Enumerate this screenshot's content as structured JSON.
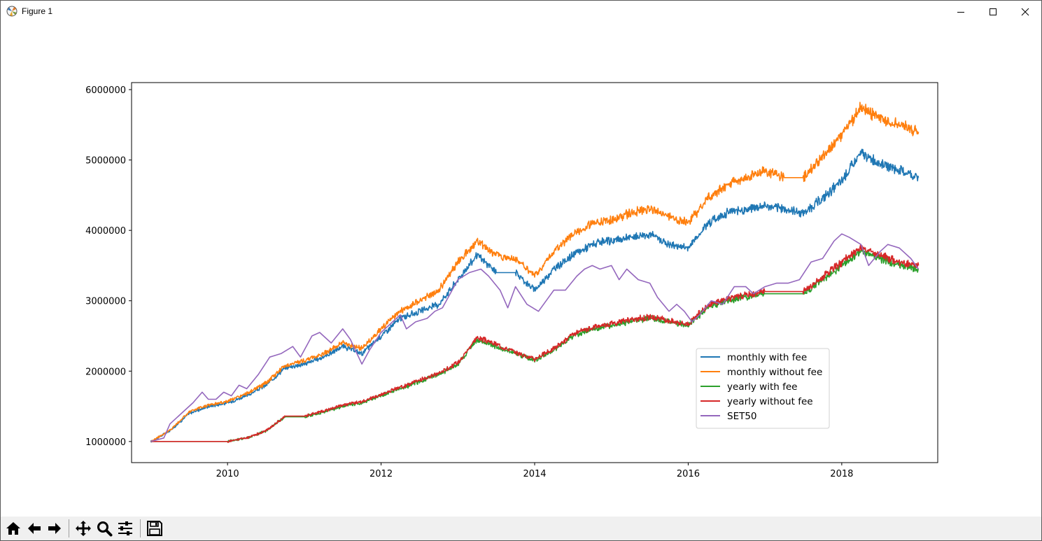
{
  "window": {
    "title": "Figure 1",
    "icons": {
      "app": "matplotlib-icon",
      "minimize": "minimize-icon",
      "maximize": "maximize-icon",
      "close": "close-icon"
    }
  },
  "toolbar": {
    "items": [
      {
        "name": "home-icon"
      },
      {
        "name": "back-arrow-icon"
      },
      {
        "name": "forward-arrow-icon"
      },
      {
        "name": "pan-move-icon"
      },
      {
        "name": "zoom-magnifier-icon"
      },
      {
        "name": "configure-subplots-icon"
      },
      {
        "name": "save-floppy-icon"
      }
    ]
  },
  "chart_data": {
    "type": "line",
    "title": "",
    "xlabel": "",
    "ylabel": "",
    "xlim": [
      2008.75,
      2019.25
    ],
    "ylim": [
      700000,
      6100000
    ],
    "x_ticks": [
      2010,
      2012,
      2014,
      2016,
      2018
    ],
    "x_tick_labels": [
      "2010",
      "2012",
      "2014",
      "2016",
      "2018"
    ],
    "y_ticks": [
      1000000,
      2000000,
      3000000,
      4000000,
      5000000,
      6000000
    ],
    "y_tick_labels": [
      "1000000",
      "2000000",
      "3000000",
      "4000000",
      "5000000",
      "6000000"
    ],
    "grid": false,
    "legend_position": "lower-right",
    "series": [
      {
        "name": "monthly with fee",
        "color": "#1f77b4",
        "noisy": true,
        "x": [
          2009.0,
          2009.25,
          2009.5,
          2009.75,
          2010.0,
          2010.25,
          2010.5,
          2010.75,
          2011.0,
          2011.25,
          2011.5,
          2011.75,
          2012.0,
          2012.25,
          2012.5,
          2012.75,
          2013.0,
          2013.25,
          2013.5,
          2013.75,
          2014.0,
          2014.25,
          2014.5,
          2014.75,
          2015.0,
          2015.25,
          2015.5,
          2015.75,
          2016.0,
          2016.25,
          2016.5,
          2016.75,
          2017.0,
          2017.25,
          2017.5,
          2017.75,
          2018.0,
          2018.25,
          2018.5,
          2018.75,
          2019.0
        ],
        "values": [
          1000000,
          1150000,
          1400000,
          1500000,
          1550000,
          1650000,
          1800000,
          2050000,
          2100000,
          2200000,
          2350000,
          2250000,
          2500000,
          2750000,
          2850000,
          2950000,
          3300000,
          3650000,
          3400000,
          3400000,
          3150000,
          3450000,
          3650000,
          3800000,
          3850000,
          3900000,
          3950000,
          3800000,
          3750000,
          4100000,
          4250000,
          4300000,
          4350000,
          4300000,
          4250000,
          4450000,
          4700000,
          5100000,
          4950000,
          4850000,
          4750000
        ]
      },
      {
        "name": "monthly without fee",
        "color": "#ff7f0e",
        "noisy": true,
        "x": [
          2009.0,
          2009.25,
          2009.5,
          2009.75,
          2010.0,
          2010.25,
          2010.5,
          2010.75,
          2011.0,
          2011.25,
          2011.5,
          2011.75,
          2012.0,
          2012.25,
          2012.5,
          2012.75,
          2013.0,
          2013.25,
          2013.5,
          2013.75,
          2014.0,
          2014.25,
          2014.5,
          2014.75,
          2015.0,
          2015.25,
          2015.5,
          2015.75,
          2016.0,
          2016.25,
          2016.5,
          2016.75,
          2017.0,
          2017.25,
          2017.5,
          2017.75,
          2018.0,
          2018.25,
          2018.5,
          2018.75,
          2019.0
        ],
        "values": [
          1000000,
          1160000,
          1420000,
          1520000,
          1570000,
          1680000,
          1830000,
          2080000,
          2150000,
          2250000,
          2400000,
          2320000,
          2600000,
          2850000,
          3000000,
          3150000,
          3550000,
          3850000,
          3650000,
          3600000,
          3350000,
          3700000,
          3950000,
          4100000,
          4150000,
          4250000,
          4300000,
          4200000,
          4100000,
          4450000,
          4650000,
          4750000,
          4850000,
          4750000,
          4750000,
          5050000,
          5350000,
          5750000,
          5600000,
          5500000,
          5400000
        ]
      },
      {
        "name": "yearly with fee",
        "color": "#2ca02c",
        "noisy": true,
        "x": [
          2009.0,
          2010.0,
          2010.25,
          2010.5,
          2010.75,
          2011.0,
          2011.25,
          2011.5,
          2011.75,
          2012.0,
          2012.25,
          2012.5,
          2012.75,
          2013.0,
          2013.25,
          2013.5,
          2013.75,
          2014.0,
          2014.25,
          2014.5,
          2014.75,
          2015.0,
          2015.25,
          2015.5,
          2015.75,
          2016.0,
          2016.25,
          2016.5,
          2016.75,
          2017.0,
          2017.25,
          2017.5,
          2017.75,
          2018.0,
          2018.25,
          2018.5,
          2018.75,
          2019.0
        ],
        "values": [
          1000000,
          1000000,
          1050000,
          1150000,
          1350000,
          1350000,
          1420000,
          1500000,
          1550000,
          1650000,
          1750000,
          1850000,
          1950000,
          2100000,
          2450000,
          2350000,
          2250000,
          2150000,
          2300000,
          2500000,
          2600000,
          2650000,
          2700000,
          2750000,
          2700000,
          2650000,
          2900000,
          3000000,
          3050000,
          3100000,
          3100000,
          3100000,
          3300000,
          3500000,
          3700000,
          3600000,
          3500000,
          3450000
        ]
      },
      {
        "name": "yearly without fee",
        "color": "#d62728",
        "noisy": true,
        "x": [
          2009.0,
          2010.0,
          2010.25,
          2010.5,
          2010.75,
          2011.0,
          2011.25,
          2011.5,
          2011.75,
          2012.0,
          2012.25,
          2012.5,
          2012.75,
          2013.0,
          2013.25,
          2013.5,
          2013.75,
          2014.0,
          2014.25,
          2014.5,
          2014.75,
          2015.0,
          2015.25,
          2015.5,
          2015.75,
          2016.0,
          2016.25,
          2016.5,
          2016.75,
          2017.0,
          2017.25,
          2017.5,
          2017.75,
          2018.0,
          2018.25,
          2018.5,
          2018.75,
          2019.0
        ],
        "values": [
          1000000,
          1000000,
          1050000,
          1150000,
          1360000,
          1360000,
          1430000,
          1520000,
          1560000,
          1670000,
          1770000,
          1870000,
          1970000,
          2120000,
          2480000,
          2380000,
          2270000,
          2170000,
          2320000,
          2520000,
          2620000,
          2680000,
          2730000,
          2770000,
          2720000,
          2670000,
          2930000,
          3030000,
          3080000,
          3130000,
          3130000,
          3130000,
          3330000,
          3550000,
          3750000,
          3650000,
          3550000,
          3500000
        ]
      },
      {
        "name": "SET50",
        "color": "#9467bd",
        "noisy": false,
        "x": [
          2009.0,
          2009.17,
          2009.25,
          2009.4,
          2009.55,
          2009.67,
          2009.75,
          2009.85,
          2009.95,
          2010.05,
          2010.15,
          2010.25,
          2010.4,
          2010.55,
          2010.7,
          2010.85,
          2010.95,
          2011.1,
          2011.2,
          2011.35,
          2011.5,
          2011.6,
          2011.75,
          2011.85,
          2012.0,
          2012.15,
          2012.25,
          2012.33,
          2012.45,
          2012.6,
          2012.7,
          2012.8,
          2012.9,
          2013.0,
          2013.15,
          2013.3,
          2013.4,
          2013.55,
          2013.65,
          2013.75,
          2013.9,
          2014.05,
          2014.15,
          2014.25,
          2014.4,
          2014.55,
          2014.65,
          2014.75,
          2014.85,
          2015.0,
          2015.1,
          2015.2,
          2015.35,
          2015.5,
          2015.6,
          2015.75,
          2015.85,
          2015.95,
          2016.05,
          2016.15,
          2016.3,
          2016.45,
          2016.6,
          2016.75,
          2016.85,
          2017.0,
          2017.15,
          2017.3,
          2017.45,
          2017.6,
          2017.75,
          2017.9,
          2018.0,
          2018.1,
          2018.25,
          2018.35,
          2018.5,
          2018.6,
          2018.75,
          2018.9,
          2019.0
        ],
        "values": [
          1000000,
          1050000,
          1250000,
          1400000,
          1550000,
          1700000,
          1600000,
          1600000,
          1700000,
          1650000,
          1800000,
          1750000,
          1950000,
          2200000,
          2250000,
          2350000,
          2200000,
          2500000,
          2550000,
          2400000,
          2600000,
          2450000,
          2100000,
          2300000,
          2550000,
          2700000,
          2800000,
          2600000,
          2700000,
          2750000,
          2850000,
          2900000,
          3100000,
          3300000,
          3400000,
          3450000,
          3350000,
          3150000,
          2900000,
          3200000,
          2950000,
          2850000,
          3000000,
          3150000,
          3150000,
          3350000,
          3450000,
          3500000,
          3450000,
          3500000,
          3300000,
          3450000,
          3300000,
          3250000,
          3050000,
          2850000,
          2950000,
          2850000,
          2700000,
          2800000,
          3000000,
          2950000,
          3200000,
          3200000,
          3100000,
          3200000,
          3250000,
          3250000,
          3300000,
          3550000,
          3600000,
          3850000,
          3950000,
          3900000,
          3800000,
          3500000,
          3700000,
          3800000,
          3750000,
          3600000,
          3450000
        ]
      }
    ]
  }
}
